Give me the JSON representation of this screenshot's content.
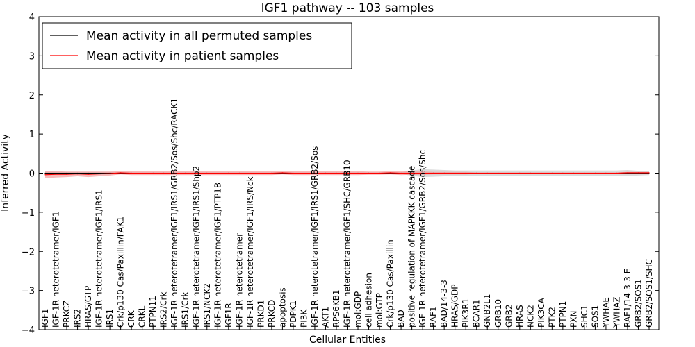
{
  "chart_data": {
    "type": "line",
    "title": "IGF1 pathway -- 103 samples",
    "xlabel": "Cellular Entities",
    "ylabel": "Inferred Activity",
    "ylim": [
      -4,
      4
    ],
    "yticks": [
      "−4",
      "−3",
      "−2",
      "−1",
      "0",
      "1",
      "2",
      "3",
      "4"
    ],
    "grid": false,
    "legend_position": "top-left",
    "categories": [
      "IGF1",
      "IGF-1R heterotetramer/IGF1",
      "PRKCZ",
      "IRS2",
      "HRAS/GTP",
      "IGF-1R heterotetramer/IGF1/IRS1",
      "IRS1",
      "Crk/p130 Cas/Paxillin/FAK1",
      "CRK",
      "CRKL",
      "PTPN11",
      "IRS2/Crk",
      "IGF-1R heterotetramer/IGF1/IRS1/GRB2/Sos/Shc/RACK1",
      "IRS1/Crk",
      "IGF-1R heterotetramer/IGF1/IRS1/Shp2",
      "IRS1/NCK2",
      "IGF-1R heterotetramer/IGF1/PTP1B",
      "IGF1R",
      "IGF-1R heterotetramer",
      "IGF-1R heterotetramer/IGF1/IRS/Nck",
      "PRKD1",
      "PRKCD",
      "apoptosis",
      "PDPK1",
      "PI3K",
      "IGF-1R heterotetramer/IGF1/IRS1/GRB2/Sos",
      "AKT1",
      "RPS6KB1",
      "IGF-1R heterotetramer/IGF1/SHC/GRB10",
      "mol:GDP",
      "cell adhesion",
      "mol:GTP",
      "Crk/p130 Cas/Paxillin",
      "BAD",
      "positive regulation of MAPKKK cascade",
      "IGF-1R heterotetramer/IGF1/GRB2/Sos/Shc",
      "RAF1",
      "BAD/14-3-3",
      "HRAS/GDP",
      "PIK3R1",
      "BCAR1",
      "GNB2L1",
      "GRB10",
      "GRB2",
      "HRAS",
      "NCK2",
      "PIK3CA",
      "PTK2",
      "PTPN1",
      "PXN",
      "SHC1",
      "SOS1",
      "YWHAE",
      "YWHAZ",
      "RAF1/14-3-3 E",
      "GRB2/SOS1",
      "GRB2/SOS1/SHC"
    ],
    "series": [
      {
        "name": "Mean activity in all permuted samples",
        "color": "#000000",
        "band_color": "#b0b0b0",
        "values": [
          0,
          0,
          0,
          0,
          0,
          0,
          0,
          0,
          0,
          0,
          0,
          0,
          0,
          0,
          0,
          0,
          0,
          0,
          0,
          0,
          0,
          0,
          0,
          0,
          0,
          0,
          0,
          0,
          0,
          0,
          0,
          0,
          0,
          0,
          0,
          0,
          0,
          0,
          0,
          0,
          0,
          0,
          0,
          0,
          0,
          0,
          0,
          0,
          0,
          0,
          0,
          0,
          0,
          0,
          0,
          0,
          0
        ],
        "band": [
          0.03,
          0.03,
          0.03,
          0.03,
          0.03,
          0.03,
          0.03,
          0.02,
          0.02,
          0.02,
          0.02,
          0.02,
          0.02,
          0.02,
          0.02,
          0.02,
          0.02,
          0.02,
          0.02,
          0.02,
          0.02,
          0.02,
          0.02,
          0.02,
          0.02,
          0.02,
          0.02,
          0.02,
          0.02,
          0.02,
          0.02,
          0.02,
          0.02,
          0.02,
          0.07,
          0.1,
          0.09,
          0.08,
          0.07,
          0.07,
          0.07,
          0.07,
          0.07,
          0.07,
          0.07,
          0.07,
          0.07,
          0.07,
          0.07,
          0.07,
          0.07,
          0.07,
          0.07,
          0.07,
          0.08,
          0.06,
          0.05
        ]
      },
      {
        "name": "Mean activity in patient samples",
        "color": "#ff0000",
        "band_color": "#f08080",
        "values": [
          -0.04,
          -0.03,
          -0.03,
          -0.02,
          -0.03,
          -0.02,
          -0.01,
          0.01,
          0,
          0,
          0,
          0,
          0,
          0,
          0,
          0,
          0,
          0,
          0,
          0,
          0,
          0,
          0.01,
          0,
          0,
          0,
          0,
          0,
          0,
          0,
          0,
          0,
          0.01,
          0,
          0,
          0,
          0,
          0,
          0,
          0,
          0,
          0,
          0,
          0,
          0,
          0,
          0,
          0,
          0,
          0,
          0,
          0,
          0,
          0,
          0.01,
          0.01,
          0.01
        ],
        "band": [
          0.09,
          0.08,
          0.07,
          0.06,
          0.07,
          0.06,
          0.05,
          0.04,
          0.05,
          0.05,
          0.05,
          0.05,
          0.05,
          0.05,
          0.05,
          0.05,
          0.05,
          0.05,
          0.05,
          0.05,
          0.05,
          0.05,
          0.04,
          0.05,
          0.05,
          0.05,
          0.05,
          0.05,
          0.05,
          0.05,
          0.04,
          0.04,
          0.04,
          0.05,
          0.04,
          0.04,
          0.03,
          0.03,
          0.03,
          0.03,
          0.02,
          0.02,
          0.02,
          0.02,
          0.02,
          0.02,
          0.02,
          0.02,
          0.02,
          0.02,
          0.02,
          0.02,
          0.02,
          0.02,
          0.02,
          0.02,
          0.02
        ]
      }
    ]
  }
}
